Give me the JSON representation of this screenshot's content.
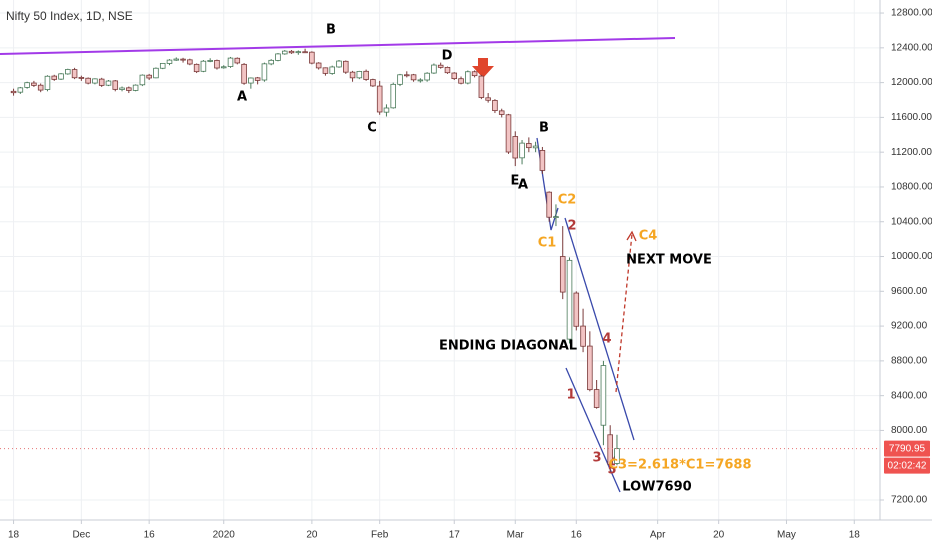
{
  "chart_data": {
    "type": "candlestick",
    "title": "Nifty 50 Index, 1D, NSE",
    "x": [
      0,
      1,
      2,
      3,
      4,
      5,
      6,
      7,
      8,
      9,
      10,
      11,
      12,
      13,
      14,
      15,
      16,
      17,
      18,
      19,
      20,
      21,
      22,
      23,
      24,
      25,
      26,
      27,
      28,
      29,
      30,
      31,
      32,
      33,
      34,
      35,
      36,
      37,
      38,
      39,
      40,
      41,
      42,
      43,
      44,
      45,
      46,
      47,
      48,
      49,
      50,
      51,
      52,
      53,
      54,
      55,
      56,
      57,
      58,
      59,
      60,
      61,
      62,
      63,
      64,
      65,
      66,
      67,
      68,
      69,
      70,
      71,
      72,
      73,
      74,
      75,
      76,
      77,
      78,
      79,
      80,
      81,
      82,
      83,
      84,
      85,
      86,
      87,
      88,
      89
    ],
    "open": [
      11900,
      11890,
      11945,
      11995,
      11970,
      11920,
      12075,
      12040,
      12100,
      12150,
      12060,
      12050,
      11995,
      12040,
      11970,
      12020,
      11920,
      11940,
      11910,
      11975,
      12085,
      12055,
      12165,
      12220,
      12258,
      12270,
      12262,
      12210,
      12130,
      12245,
      12255,
      12170,
      12185,
      12280,
      12210,
      11995,
      12055,
      12030,
      12215,
      12255,
      12330,
      12360,
      12345,
      12355,
      12350,
      12225,
      12170,
      12105,
      12180,
      12245,
      12120,
      12055,
      12130,
      12035,
      11960,
      11660,
      11710,
      11980,
      12090,
      12090,
      12030,
      12030,
      12110,
      12200,
      12175,
      12110,
      12045,
      11995,
      12125,
      12075,
      11825,
      11795,
      11675,
      11630,
      11380,
      11135,
      11300,
      11250,
      11220,
      10740,
      10450,
      10000,
      9050,
      9580,
      9200,
      8970,
      8470,
      8060,
      7950,
      7620
    ],
    "high": [
      11930,
      11950,
      12010,
      12020,
      11990,
      12085,
      12090,
      12110,
      12160,
      12170,
      12080,
      12060,
      12050,
      12055,
      12030,
      12030,
      11955,
      11955,
      11980,
      12095,
      12100,
      12175,
      12225,
      12270,
      12290,
      12285,
      12275,
      12220,
      12260,
      12280,
      12265,
      12200,
      12295,
      12290,
      12225,
      12060,
      12065,
      12230,
      12270,
      12340,
      12375,
      12375,
      12370,
      12390,
      12360,
      12235,
      12175,
      12195,
      12260,
      12255,
      12135,
      12135,
      12150,
      12045,
      12020,
      11750,
      12000,
      12100,
      12130,
      12100,
      12050,
      12120,
      12220,
      12230,
      12185,
      12120,
      12070,
      12140,
      12140,
      12090,
      11880,
      11810,
      11700,
      11640,
      11440,
      11340,
      11370,
      11320,
      11260,
      10750,
      10600,
      10350,
      9990,
      9600,
      9400,
      9140,
      8580,
      8800,
      8060,
      7950
    ],
    "low": [
      11850,
      11870,
      11930,
      11950,
      11890,
      11900,
      12020,
      12030,
      12090,
      12040,
      12020,
      11980,
      11980,
      11950,
      11960,
      11900,
      11900,
      11880,
      11900,
      11960,
      12030,
      12050,
      12155,
      12200,
      12250,
      12230,
      12200,
      12110,
      12120,
      12235,
      12150,
      12160,
      12170,
      12210,
      11975,
      11930,
      11980,
      12010,
      12200,
      12245,
      12320,
      12330,
      12320,
      12340,
      12210,
      12150,
      12080,
      12090,
      12170,
      12100,
      12010,
      12040,
      12020,
      11950,
      11630,
      11610,
      11700,
      11960,
      12060,
      12010,
      12000,
      12010,
      12100,
      12160,
      12100,
      12030,
      11980,
      11980,
      12060,
      11810,
      11770,
      11650,
      11600,
      11180,
      11040,
      11060,
      11200,
      11200,
      10950,
      10400,
      10350,
      9510,
      9000,
      9150,
      8900,
      8450,
      8250,
      7830,
      7520,
      7600
    ],
    "close": [
      11884,
      11940,
      11999,
      11968,
      11914,
      12073,
      12037,
      12101,
      12151,
      12056,
      12048,
      11994,
      12043,
      11968,
      12018,
      11922,
      11938,
      11910,
      11971,
      12086,
      12053,
      12165,
      12221,
      12259,
      12271,
      12262,
      12214,
      12126,
      12246,
      12255,
      12168,
      12182,
      12282,
      12226,
      11993,
      12053,
      12025,
      12216,
      12256,
      12330,
      12362,
      12343,
      12356,
      12352,
      12224,
      12169,
      12106,
      12180,
      12248,
      12120,
      12055,
      12129,
      12036,
      11962,
      11662,
      11708,
      11980,
      12090,
      12089,
      12032,
      12031,
      12108,
      12202,
      12175,
      12114,
      12046,
      11993,
      12125,
      12080,
      11829,
      11797,
      11678,
      11634,
      11202,
      11133,
      11304,
      11252,
      11270,
      10990,
      10452,
      10459,
      9591,
      9956,
      9198,
      8968,
      8469,
      8264,
      8746,
      7610,
      7791
    ],
    "up_color": "#ffffff",
    "up_border": "#4a7a5a",
    "down_color": "#f2c4c4",
    "down_border": "#7a3a3a",
    "xlim": [
      -2,
      127.5
    ],
    "xticks": [
      {
        "value": 0,
        "label": "18"
      },
      {
        "value": 10,
        "label": "Dec"
      },
      {
        "value": 20,
        "label": "16"
      },
      {
        "value": 31,
        "label": "2020"
      },
      {
        "value": 44,
        "label": "20"
      },
      {
        "value": 54,
        "label": "Feb"
      },
      {
        "value": 65,
        "label": "17"
      },
      {
        "value": 74,
        "label": "Mar"
      },
      {
        "value": 83,
        "label": "16"
      },
      {
        "value": 95,
        "label": "Apr"
      },
      {
        "value": 104,
        "label": "20"
      },
      {
        "value": 114,
        "label": "May"
      },
      {
        "value": 124,
        "label": "18"
      }
    ],
    "ylim": [
      6970,
      12950
    ],
    "yticks": [
      {
        "value": 7200,
        "label": "7200.00"
      },
      {
        "value": 8000,
        "label": "8000.00"
      },
      {
        "value": 8400,
        "label": "8400.00"
      },
      {
        "value": 8800,
        "label": "8800.00"
      },
      {
        "value": 9200,
        "label": "9200.00"
      },
      {
        "value": 9600,
        "label": "9600.00"
      },
      {
        "value": 10000,
        "label": "10000.00"
      },
      {
        "value": 10400,
        "label": "10400.00"
      },
      {
        "value": 10800,
        "label": "10800.00"
      },
      {
        "value": 11200,
        "label": "11200.00"
      },
      {
        "value": 11600,
        "label": "11600.00"
      },
      {
        "value": 12000,
        "label": "12000.00"
      },
      {
        "value": 12400,
        "label": "12400.00"
      },
      {
        "value": 12800,
        "label": "12800.00"
      }
    ],
    "grid": true,
    "last_price": 7790.95,
    "countdown": "02:02:42",
    "annotations": [
      {
        "text": "B",
        "color": "#000000"
      },
      {
        "text": "A",
        "color": "#000000"
      },
      {
        "text": "C",
        "color": "#000000"
      },
      {
        "text": "D",
        "color": "#000000"
      },
      {
        "text": "B",
        "color": "#000000"
      },
      {
        "text": "E",
        "color": "#000000"
      },
      {
        "text": "A",
        "color": "#000000"
      },
      {
        "text": "C2",
        "color": "#f5a623"
      },
      {
        "text": "C1",
        "color": "#f5a623"
      },
      {
        "text": "2",
        "color": "#b23a3a"
      },
      {
        "text": "C4",
        "color": "#f5a623"
      },
      {
        "text": "NEXT MOVE",
        "color": "#000000"
      },
      {
        "text": "ENDING DIAGONAL",
        "color": "#000000"
      },
      {
        "text": "4",
        "color": "#b23a3a"
      },
      {
        "text": "1",
        "color": "#b23a3a"
      },
      {
        "text": "3",
        "color": "#b23a3a"
      },
      {
        "text": "5",
        "color": "#b23a3a"
      },
      {
        "text": "C3=2.618*C1=7688",
        "color": "#f5a623"
      },
      {
        "text": "LOW7690",
        "color": "#000000"
      }
    ]
  }
}
